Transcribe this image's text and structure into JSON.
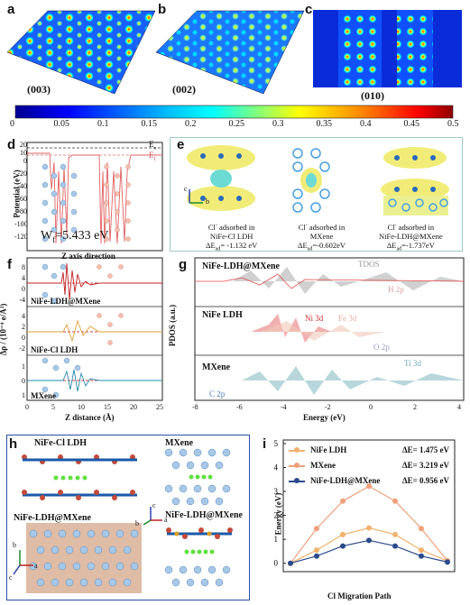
{
  "panels": {
    "a": {
      "label": "a",
      "plane": "(003)"
    },
    "b": {
      "label": "b",
      "plane": "(002)"
    },
    "c": {
      "label": "c",
      "plane": "(010)"
    },
    "d": {
      "label": "d",
      "ylabel": "Potential (eV)",
      "xlabel": "Z axis direction",
      "ev_label": "E",
      "ef_label": "E",
      "wf_text": "W",
      "wf_sub": "f",
      "wf_value": "=5.433 eV",
      "yticks": [
        "20",
        "10",
        "0",
        "-20",
        "-40",
        "-60",
        "-80",
        "-100",
        "-120"
      ]
    },
    "e": {
      "label": "e",
      "items": [
        {
          "line1": "Cl",
          "line1sup": "-",
          "line1b": " adsorbed in",
          "line2": "NiFe-Cl LDH",
          "line3": "ΔE",
          "sub": "ad",
          "line3b": "= -1.132 eV"
        },
        {
          "line1": "Cl",
          "line1sup": "-",
          "line1b": " adsorbed in",
          "line2": "MXene",
          "line3": "ΔE",
          "sub": "ad",
          "line3b": "=-0.602eV"
        },
        {
          "line1": "Cl",
          "line1sup": "-",
          "line1b": " adsorbed in",
          "line2": "NiFe-LDH@MXene",
          "line3": "ΔE",
          "sub": "ad",
          "line3b": "=-1.737eV"
        }
      ],
      "axes": {
        "c": "c",
        "b": "b"
      }
    },
    "f": {
      "label": "f",
      "ylabel": "Δρ / (10⁻⁴ e/Å³)",
      "xlabel": "Z distance (Å)",
      "sub_labels": [
        "NiFe-LDH@MXene",
        "NiFe-Cl LDH",
        "MXene"
      ],
      "xticks": [
        "0",
        "5",
        "10",
        "15",
        "20",
        "25"
      ],
      "yticks_top": [
        "8",
        "4",
        "0",
        "-4"
      ],
      "yticks_mid": [
        "4",
        "2",
        "0",
        "-2"
      ],
      "yticks_bot": [
        "1",
        "0",
        "1"
      ]
    },
    "g": {
      "label": "g",
      "ylabel": "PDOS (a.u.)",
      "xlabel": "Energy (eV)",
      "xticks": [
        "-8",
        "-6",
        "-4",
        "-2",
        "0",
        "2",
        "4"
      ],
      "sub_labels": [
        "NiFe-LDH@MXene",
        "NiFe LDH",
        "MXene"
      ],
      "series_labels": {
        "tdos": "TDOS",
        "h2p": "H 2p",
        "ni3d": "Ni 3d",
        "fe3d": "Fe 3d",
        "o2p": "O 2p",
        "ti3d": "Ti 3d",
        "c2p": "C 2p"
      }
    },
    "h": {
      "label": "h",
      "titles": [
        "NiFe-Cl LDH",
        "MXene",
        "NiFe-LDH@MXene",
        "NiFe-LDH@MXene"
      ],
      "axes1": {
        "c": "c",
        "b": "b",
        "a": "a"
      },
      "axes2": {
        "b": "b",
        "c": "c",
        "a": "a"
      }
    },
    "i": {
      "label": "i",
      "ylabel": "Energy (eV)",
      "xlabel": "Cl Migration Path"
    }
  },
  "colorbar": {
    "ticks": [
      "0",
      "0.05",
      "0.1",
      "0.15",
      "0.2",
      "0.25",
      "0.3",
      "0.35",
      "0.4",
      "0.45",
      "0.5"
    ],
    "colors": [
      "#00008f",
      "#0000ff",
      "#00bfff",
      "#00ffff",
      "#7fff7f",
      "#ffff00",
      "#ff7f00",
      "#ff0000",
      "#8f0000"
    ]
  },
  "chart_data": [
    {
      "type": "line",
      "title": "",
      "xlabel": "Cl Migration Path",
      "ylabel": "Energy (eV)",
      "ylim": [
        -0.2,
        5
      ],
      "x": [
        0,
        1,
        2,
        3,
        4,
        5,
        6
      ],
      "series": [
        {
          "name": "NiFe LDH",
          "dE": "ΔE= 1.475 eV",
          "color": "#f2b36f",
          "values": [
            0,
            0.55,
            1.2,
            1.475,
            1.2,
            0.55,
            0.1
          ]
        },
        {
          "name": "MXene",
          "dE": "ΔE= 3.219 eV",
          "color": "#f0a07a",
          "values": [
            0,
            1.45,
            2.6,
            3.219,
            2.6,
            1.45,
            0.1
          ]
        },
        {
          "name": "NiFe-LDH@MXene",
          "dE": "ΔE= 0.956 eV",
          "color": "#2a4a8c",
          "values": [
            0,
            0.3,
            0.72,
            0.956,
            0.72,
            0.3,
            0.05
          ]
        }
      ],
      "yticks": [
        "0",
        "1",
        "2",
        "3",
        "4",
        "5"
      ]
    }
  ]
}
